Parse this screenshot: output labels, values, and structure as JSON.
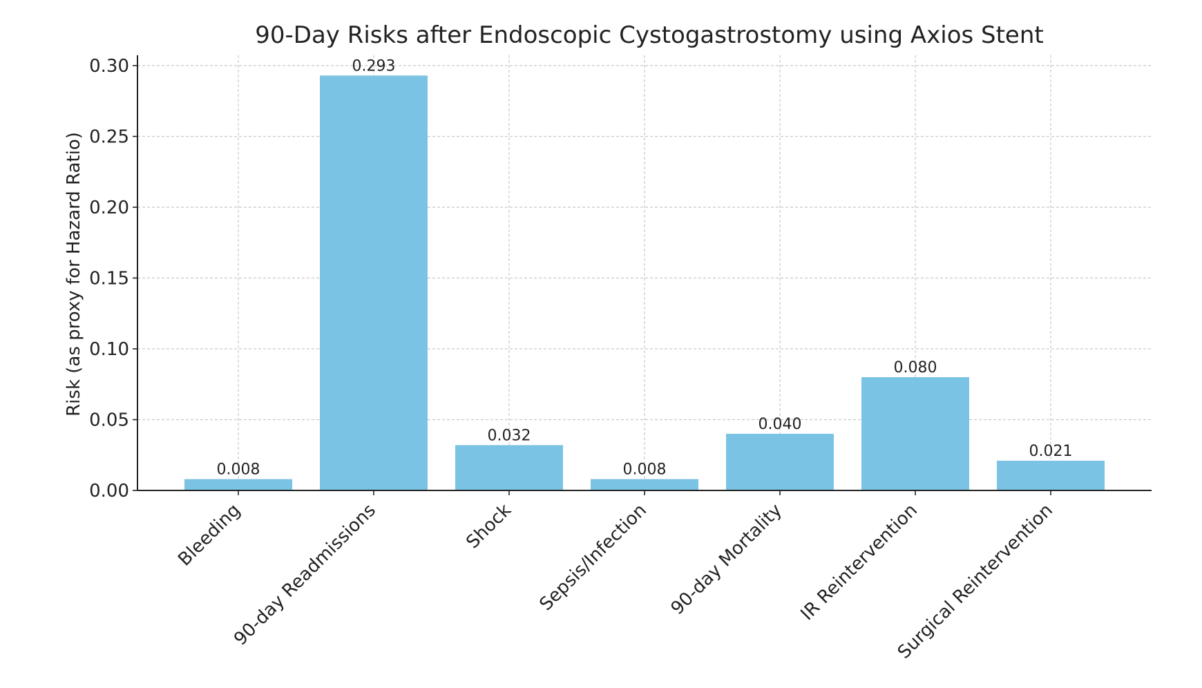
{
  "chart_data": {
    "type": "bar",
    "title": "90-Day Risks after Endoscopic Cystogastrostomy using Axios Stent",
    "xlabel": "",
    "ylabel": "Risk (as proxy for Hazard Ratio)",
    "categories": [
      "Bleeding",
      "90-day Readmissions",
      "Shock",
      "Sepsis/Infection",
      "90-day Mortality",
      "IR Reintervention",
      "Surgical Reintervention"
    ],
    "values": [
      0.008,
      0.293,
      0.032,
      0.008,
      0.04,
      0.08,
      0.021
    ],
    "data_labels": [
      "0.008",
      "0.293",
      "0.032",
      "0.008",
      "0.040",
      "0.080",
      "0.021"
    ],
    "ylim": [
      0,
      0.3
    ],
    "yticks": [
      0.0,
      0.05,
      0.1,
      0.15,
      0.2,
      0.25,
      0.3
    ],
    "ytick_labels": [
      "0.00",
      "0.05",
      "0.10",
      "0.15",
      "0.20",
      "0.25",
      "0.30"
    ],
    "grid": true,
    "legend": "none",
    "colors": {
      "bar": "#7bc3e4",
      "axis": "#222222",
      "grid": "#c8c8c8"
    }
  }
}
